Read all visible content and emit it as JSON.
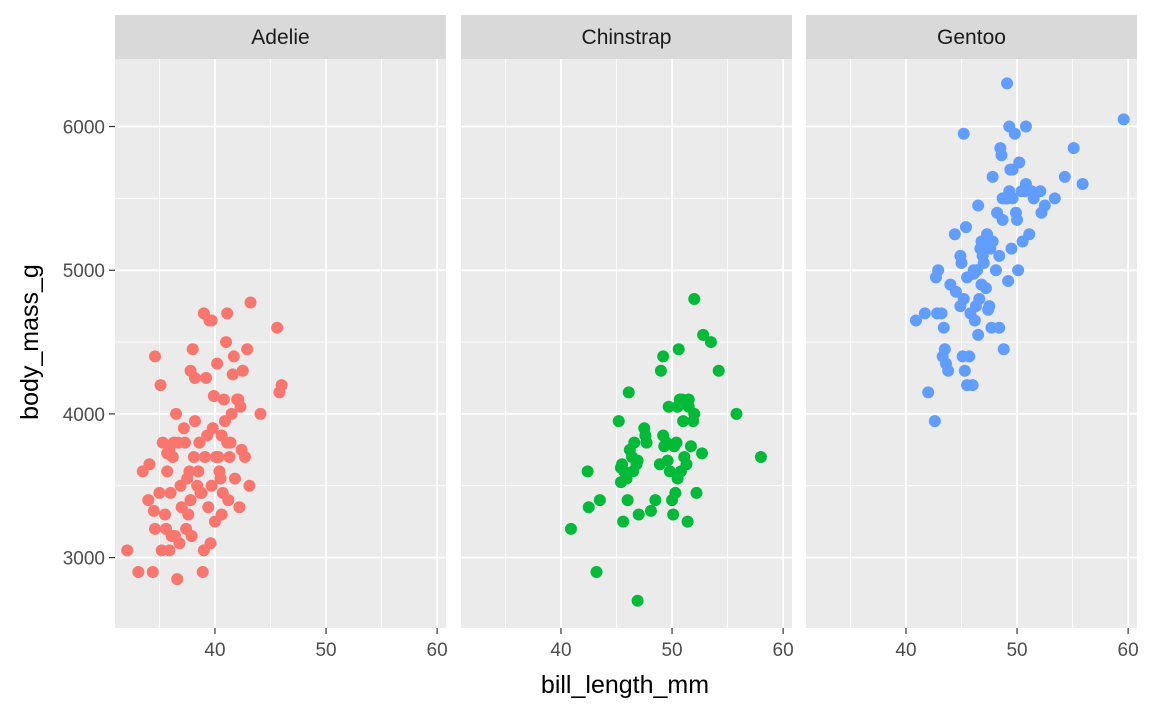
{
  "chart_data": {
    "type": "scatter",
    "facet_by": "species",
    "xlabel": "bill_length_mm",
    "ylabel": "body_mass_g",
    "xlim": [
      31.0,
      60.8
    ],
    "ylim": [
      2510,
      6470
    ],
    "x_ticks": [
      40,
      50,
      60
    ],
    "x_tick_labels": [
      "40",
      "50",
      "60"
    ],
    "y_ticks": [
      3000,
      4000,
      5000,
      6000
    ],
    "y_tick_labels": [
      "3000",
      "4000",
      "5000",
      "6000"
    ],
    "grid": true,
    "legend": "none",
    "colors": {
      "Adelie": "#F8766D",
      "Chinstrap": "#00BA38",
      "Gentoo": "#619CFF"
    },
    "panel_background": "#EBEBEB",
    "strip_background": "#D9D9D9",
    "panels": [
      {
        "name": "Adelie",
        "points": [
          [
            32.1,
            3050
          ],
          [
            33.1,
            2900
          ],
          [
            33.5,
            3600
          ],
          [
            34.0,
            3400
          ],
          [
            34.4,
            2900
          ],
          [
            34.5,
            3325
          ],
          [
            34.6,
            3200
          ],
          [
            34.6,
            4400
          ],
          [
            35.0,
            3450
          ],
          [
            35.1,
            4200
          ],
          [
            35.2,
            3050
          ],
          [
            35.3,
            3800
          ],
          [
            35.5,
            3300
          ],
          [
            35.6,
            3200
          ],
          [
            35.7,
            3600
          ],
          [
            35.9,
            3050
          ],
          [
            36.0,
            3450
          ],
          [
            36.2,
            3700
          ],
          [
            36.4,
            3150
          ],
          [
            36.6,
            2850
          ],
          [
            36.7,
            3800
          ],
          [
            36.9,
            3500
          ],
          [
            37.0,
            3350
          ],
          [
            37.2,
            3900
          ],
          [
            37.3,
            3800
          ],
          [
            37.5,
            3550
          ],
          [
            37.6,
            3300
          ],
          [
            37.8,
            4300
          ],
          [
            37.9,
            3150
          ],
          [
            38.1,
            3700
          ],
          [
            38.2,
            3950
          ],
          [
            38.4,
            3500
          ],
          [
            38.6,
            3800
          ],
          [
            38.7,
            3450
          ],
          [
            38.9,
            2900
          ],
          [
            39.0,
            3050
          ],
          [
            39.2,
            4250
          ],
          [
            39.4,
            3350
          ],
          [
            39.5,
            4650
          ],
          [
            39.7,
            3500
          ],
          [
            39.8,
            3900
          ],
          [
            40.0,
            3250
          ],
          [
            40.2,
            4350
          ],
          [
            40.3,
            3700
          ],
          [
            40.5,
            3550
          ],
          [
            40.6,
            3850
          ],
          [
            40.8,
            4100
          ],
          [
            40.9,
            3950
          ],
          [
            41.1,
            4700
          ],
          [
            41.3,
            3700
          ],
          [
            41.4,
            3800
          ],
          [
            41.5,
            4000
          ],
          [
            41.7,
            4400
          ],
          [
            41.8,
            3550
          ],
          [
            42.0,
            4100
          ],
          [
            42.2,
            3350
          ],
          [
            42.3,
            4050
          ],
          [
            42.5,
            4300
          ],
          [
            42.7,
            3700
          ],
          [
            42.9,
            4450
          ],
          [
            43.1,
            3500
          ],
          [
            43.2,
            4775
          ],
          [
            44.1,
            4000
          ],
          [
            45.6,
            4600
          ],
          [
            45.8,
            4150
          ],
          [
            46.0,
            4200
          ],
          [
            34.1,
            3650
          ],
          [
            35.7,
            3725
          ],
          [
            36.3,
            3800
          ],
          [
            36.5,
            4000
          ],
          [
            37.7,
            3600
          ],
          [
            38.0,
            4450
          ],
          [
            38.8,
            3450
          ],
          [
            39.1,
            3700
          ],
          [
            39.6,
            3100
          ],
          [
            39.9,
            4125
          ],
          [
            40.1,
            3700
          ],
          [
            40.4,
            3600
          ],
          [
            40.7,
            3450
          ],
          [
            41.0,
            4500
          ],
          [
            41.2,
            3400
          ],
          [
            41.6,
            4275
          ],
          [
            42.4,
            3750
          ],
          [
            42.1,
            4100
          ],
          [
            36.8,
            3100
          ],
          [
            37.4,
            3200
          ],
          [
            38.5,
            3600
          ],
          [
            39.3,
            3850
          ],
          [
            39.0,
            4700
          ],
          [
            40.6,
            3300
          ],
          [
            41.1,
            3800
          ],
          [
            38.2,
            4250
          ],
          [
            36.1,
            3150
          ],
          [
            35.9,
            3750
          ],
          [
            37.8,
            3400
          ],
          [
            39.7,
            4650
          ]
        ]
      },
      {
        "name": "Chinstrap",
        "points": [
          [
            40.9,
            3200
          ],
          [
            42.4,
            3600
          ],
          [
            42.5,
            3350
          ],
          [
            43.2,
            2900
          ],
          [
            43.5,
            3400
          ],
          [
            45.2,
            3950
          ],
          [
            45.4,
            3525
          ],
          [
            45.5,
            3650
          ],
          [
            45.6,
            3250
          ],
          [
            45.7,
            3600
          ],
          [
            45.9,
            3550
          ],
          [
            46.0,
            3400
          ],
          [
            46.1,
            4150
          ],
          [
            46.2,
            3750
          ],
          [
            46.4,
            3700
          ],
          [
            46.5,
            3600
          ],
          [
            46.6,
            3800
          ],
          [
            46.8,
            3650
          ],
          [
            46.9,
            2700
          ],
          [
            47.0,
            3300
          ],
          [
            47.5,
            3900
          ],
          [
            47.6,
            3850
          ],
          [
            48.1,
            3325
          ],
          [
            48.5,
            3400
          ],
          [
            49.0,
            4300
          ],
          [
            49.2,
            4400
          ],
          [
            49.3,
            3775
          ],
          [
            49.5,
            3800
          ],
          [
            49.6,
            3675
          ],
          [
            49.8,
            3600
          ],
          [
            50.0,
            3400
          ],
          [
            50.1,
            3300
          ],
          [
            50.2,
            3775
          ],
          [
            50.3,
            3450
          ],
          [
            50.4,
            3800
          ],
          [
            50.5,
            4050
          ],
          [
            50.6,
            4450
          ],
          [
            50.7,
            4100
          ],
          [
            50.8,
            3600
          ],
          [
            51.0,
            3950
          ],
          [
            51.3,
            3650
          ],
          [
            51.4,
            3250
          ],
          [
            51.5,
            4100
          ],
          [
            51.7,
            3775
          ],
          [
            51.9,
            3950
          ],
          [
            52.0,
            4800
          ],
          [
            52.2,
            3450
          ],
          [
            52.7,
            3725
          ],
          [
            52.8,
            4550
          ],
          [
            53.5,
            4500
          ],
          [
            54.2,
            4300
          ],
          [
            55.8,
            4000
          ],
          [
            58.0,
            3700
          ],
          [
            45.4,
            3625
          ],
          [
            46.9,
            3675
          ],
          [
            48.9,
            3650
          ],
          [
            49.7,
            4050
          ],
          [
            50.9,
            4100
          ],
          [
            47.7,
            3800
          ],
          [
            49.2,
            3850
          ],
          [
            51.1,
            3700
          ],
          [
            50.5,
            3550
          ],
          [
            51.5,
            4050
          ],
          [
            52.0,
            4000
          ]
        ]
      },
      {
        "name": "Gentoo",
        "points": [
          [
            40.9,
            4650
          ],
          [
            41.7,
            4700
          ],
          [
            42.0,
            4150
          ],
          [
            42.6,
            3950
          ],
          [
            42.7,
            4950
          ],
          [
            42.8,
            4700
          ],
          [
            42.9,
            5000
          ],
          [
            43.2,
            4700
          ],
          [
            43.3,
            4400
          ],
          [
            43.4,
            4600
          ],
          [
            43.5,
            4450
          ],
          [
            43.6,
            4350
          ],
          [
            43.8,
            4300
          ],
          [
            44.0,
            4900
          ],
          [
            44.4,
            5250
          ],
          [
            44.5,
            4850
          ],
          [
            44.9,
            4750
          ],
          [
            45.0,
            5050
          ],
          [
            45.1,
            4400
          ],
          [
            45.2,
            5950
          ],
          [
            45.3,
            4300
          ],
          [
            45.4,
            5300
          ],
          [
            45.5,
            4200
          ],
          [
            45.7,
            4400
          ],
          [
            45.8,
            4700
          ],
          [
            46.0,
            4200
          ],
          [
            46.1,
            5000
          ],
          [
            46.2,
            4650
          ],
          [
            46.3,
            4750
          ],
          [
            46.4,
            5000
          ],
          [
            46.5,
            4550
          ],
          [
            46.6,
            4800
          ],
          [
            46.8,
            5200
          ],
          [
            46.9,
            5100
          ],
          [
            47.0,
            5050
          ],
          [
            47.2,
            4875
          ],
          [
            47.3,
            5250
          ],
          [
            47.5,
            4750
          ],
          [
            47.7,
            4600
          ],
          [
            47.8,
            5650
          ],
          [
            48.1,
            5000
          ],
          [
            48.2,
            5400
          ],
          [
            48.4,
            4600
          ],
          [
            48.5,
            5850
          ],
          [
            48.6,
            5800
          ],
          [
            48.7,
            5350
          ],
          [
            48.8,
            4450
          ],
          [
            49.0,
            5500
          ],
          [
            49.1,
            6300
          ],
          [
            49.2,
            4925
          ],
          [
            49.3,
            5550
          ],
          [
            49.4,
            5700
          ],
          [
            49.5,
            5150
          ],
          [
            49.6,
            5700
          ],
          [
            49.8,
            5950
          ],
          [
            49.9,
            5400
          ],
          [
            50.0,
            5350
          ],
          [
            50.1,
            5000
          ],
          [
            50.2,
            5750
          ],
          [
            50.4,
            5550
          ],
          [
            50.5,
            5200
          ],
          [
            50.7,
            5550
          ],
          [
            50.8,
            5600
          ],
          [
            51.1,
            5250
          ],
          [
            51.3,
            5550
          ],
          [
            51.5,
            5500
          ],
          [
            52.1,
            5550
          ],
          [
            52.2,
            5400
          ],
          [
            52.5,
            5450
          ],
          [
            53.4,
            5500
          ],
          [
            54.3,
            5650
          ],
          [
            55.1,
            5850
          ],
          [
            55.9,
            5600
          ],
          [
            59.6,
            6050
          ],
          [
            47.6,
            5150
          ],
          [
            49.3,
            6000
          ],
          [
            47.4,
            4725
          ],
          [
            48.7,
            5500
          ],
          [
            46.7,
            5150
          ],
          [
            50.8,
            6000
          ],
          [
            45.2,
            4800
          ],
          [
            46.5,
            5450
          ],
          [
            44.9,
            5100
          ],
          [
            46.1,
            4975
          ],
          [
            47.8,
            5200
          ],
          [
            48.4,
            5100
          ],
          [
            45.5,
            4950
          ],
          [
            49.6,
            5500
          ],
          [
            46.8,
            4900
          ],
          [
            49.1,
            5500
          ]
        ]
      }
    ]
  }
}
